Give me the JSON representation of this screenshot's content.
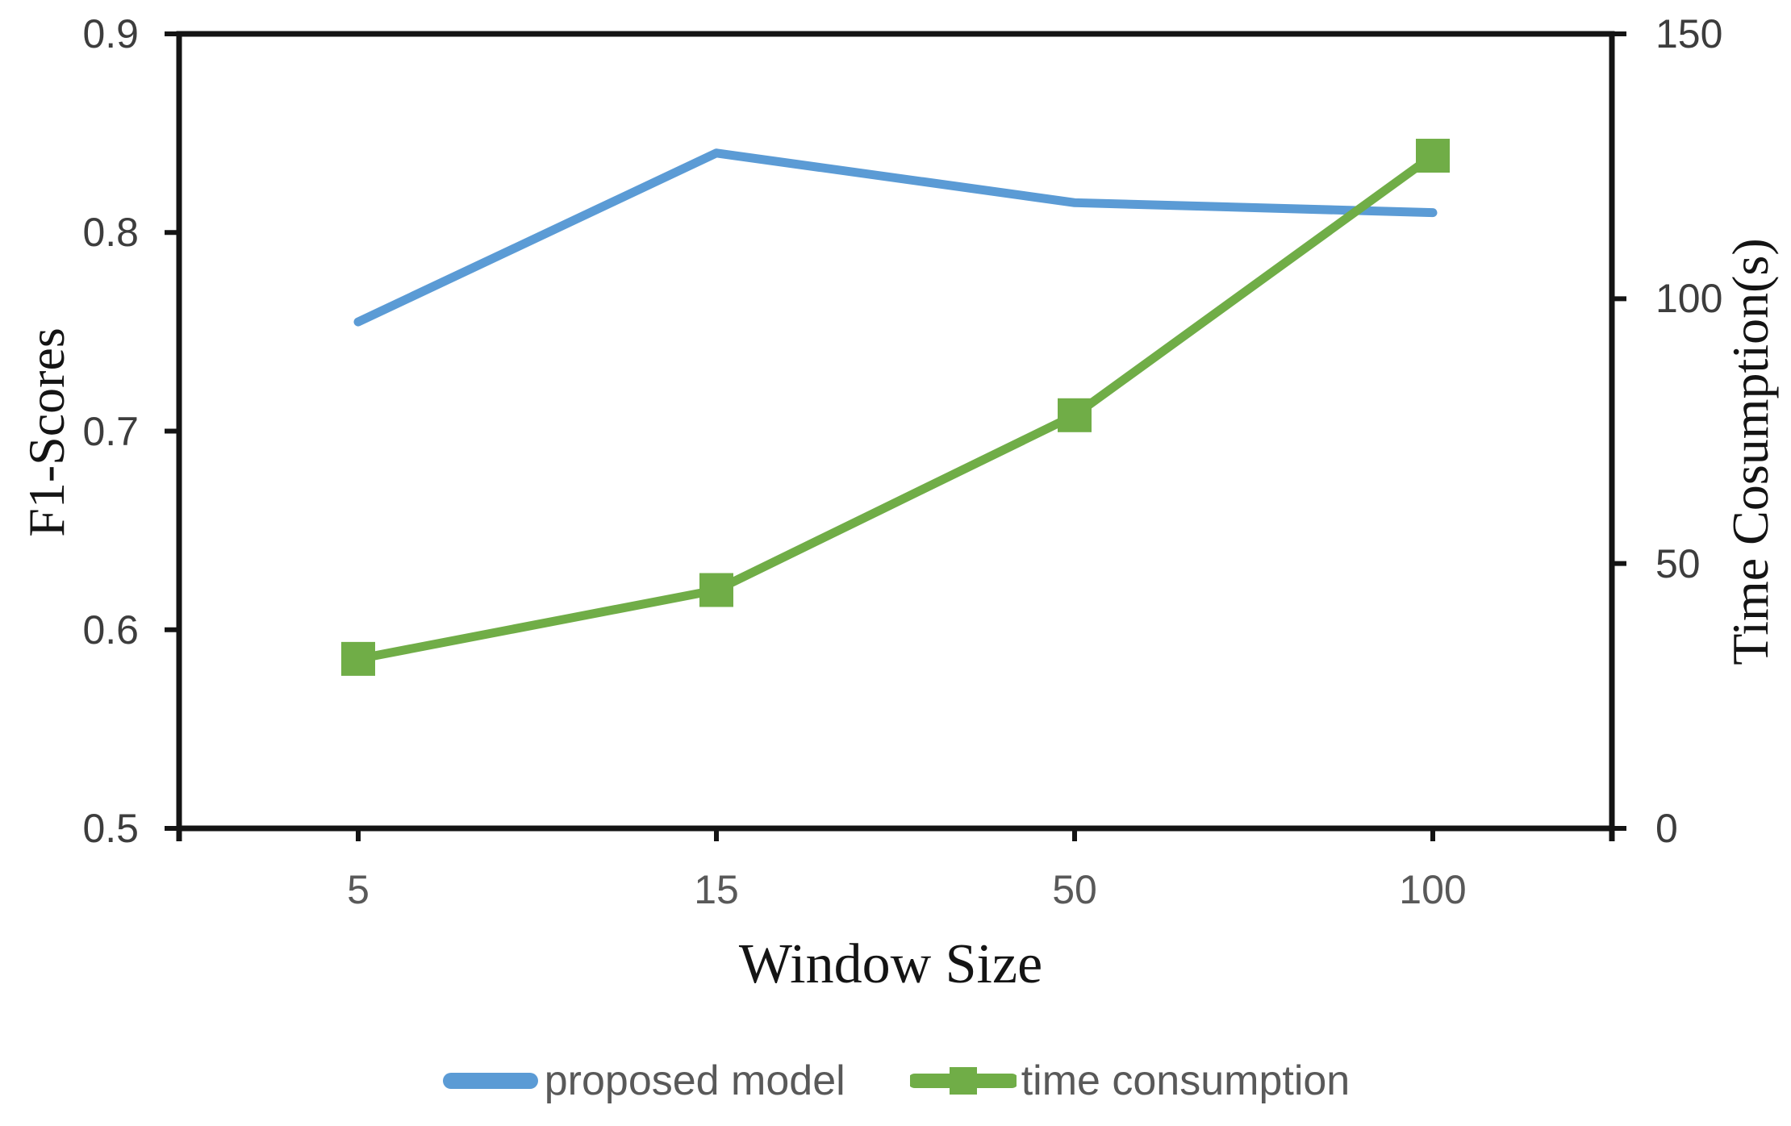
{
  "chart_data": {
    "type": "line",
    "title": "",
    "categories": [
      "5",
      "15",
      "50",
      "100"
    ],
    "xlabel": "Window Size",
    "grid": false,
    "legend_position": "bottom-center",
    "left_axis": {
      "label": "F1-Scores",
      "min": 0.5,
      "max": 0.9,
      "tick_values": [
        0.9,
        0.8,
        0.7,
        0.6,
        0.5
      ],
      "tick_labels": [
        "0.9",
        "0.8",
        "0.7",
        "0.6",
        "0.5"
      ]
    },
    "right_axis": {
      "label": "Time Cosumption(s)",
      "min": 0,
      "max": 150,
      "tick_values": [
        150,
        100,
        50,
        0
      ],
      "tick_labels": [
        "150",
        "100",
        "50",
        "0"
      ]
    },
    "series": [
      {
        "name": "proposed model",
        "axis": "left",
        "color": "#5B9BD5",
        "marker": "none",
        "values": [
          0.755,
          0.84,
          0.815,
          0.81
        ]
      },
      {
        "name": "time consumption",
        "axis": "right",
        "color": "#70AD47",
        "marker": "square",
        "values": [
          32,
          45,
          78,
          127
        ]
      }
    ]
  },
  "style": {
    "background": "#ffffff",
    "axis_color": "#141414",
    "y_tick_label_color": "#3d3d3d",
    "x_tick_label_color": "#595959",
    "axis_title_color": "#141414",
    "legend_text_color": "#595959"
  }
}
